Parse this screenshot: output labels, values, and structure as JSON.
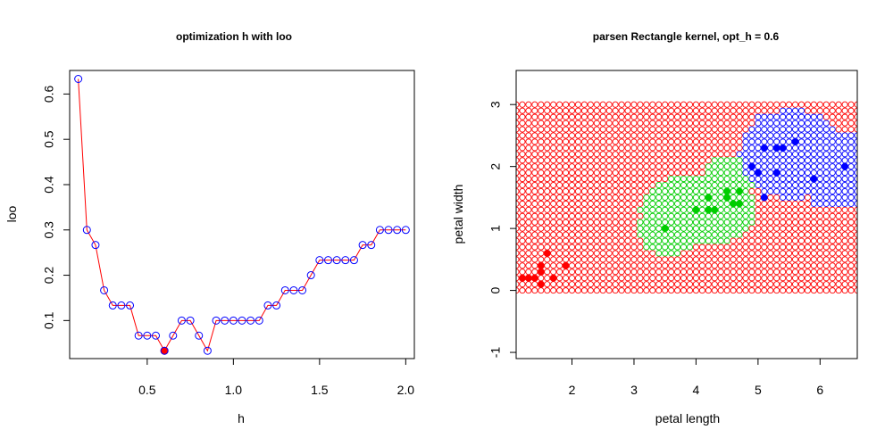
{
  "chart_data": [
    {
      "type": "line",
      "title": "optimization h with loo",
      "xlabel": "h",
      "ylabel": "loo",
      "xlim": [
        0.05,
        2.05
      ],
      "ylim": [
        0.016,
        0.652
      ],
      "xticks": [
        0.5,
        1.0,
        1.5,
        2.0
      ],
      "xtick_labels": [
        "0.5",
        "1.0",
        "1.5",
        "2.0"
      ],
      "yticks": [
        0.1,
        0.2,
        0.3,
        0.4,
        0.5,
        0.6
      ],
      "ytick_labels": [
        "0.1",
        "0.2",
        "0.3",
        "0.4",
        "0.5",
        "0.6"
      ],
      "grid": false,
      "line_color": "#ff0000",
      "point_color": "#0000ff",
      "optimum": {
        "x": 0.6,
        "y": 0.0333,
        "color": "#ff0000"
      },
      "x": [
        0.1,
        0.15,
        0.2,
        0.25,
        0.3,
        0.35,
        0.4,
        0.45,
        0.5,
        0.55,
        0.6,
        0.65,
        0.7,
        0.75,
        0.8,
        0.85,
        0.9,
        0.95,
        1.0,
        1.05,
        1.1,
        1.15,
        1.2,
        1.25,
        1.3,
        1.35,
        1.4,
        1.45,
        1.5,
        1.55,
        1.6,
        1.65,
        1.7,
        1.75,
        1.8,
        1.85,
        1.9,
        1.95,
        2.0
      ],
      "y": [
        0.6333,
        0.3,
        0.2667,
        0.1667,
        0.1333,
        0.1333,
        0.1333,
        0.0667,
        0.0667,
        0.0667,
        0.0333,
        0.0667,
        0.1,
        0.1,
        0.0667,
        0.0333,
        0.1,
        0.1,
        0.1,
        0.1,
        0.1,
        0.1,
        0.1333,
        0.1333,
        0.1667,
        0.1667,
        0.1667,
        0.2,
        0.2333,
        0.2333,
        0.2333,
        0.2333,
        0.2333,
        0.2667,
        0.2667,
        0.3,
        0.3,
        0.3,
        0.3
      ]
    },
    {
      "type": "scatter",
      "title": "parsen Rectangle kernel, opt_h =  0.6",
      "xlabel": "petal length",
      "ylabel": "petal width",
      "xlim": [
        1.1,
        6.6
      ],
      "ylim": [
        -1.1,
        3.55
      ],
      "xticks": [
        2,
        3,
        4,
        5,
        6
      ],
      "xtick_labels": [
        "2",
        "3",
        "4",
        "5",
        "6"
      ],
      "yticks": [
        -1,
        0,
        1,
        2,
        3
      ],
      "ytick_labels": [
        "-1",
        "0",
        "1",
        "2",
        "3"
      ],
      "grid": false,
      "classification_grid": {
        "x_range": [
          1.0,
          6.6
        ],
        "y_range": [
          0.0,
          3.0
        ],
        "step": 0.1,
        "classes": {
          "red": "#ff0000",
          "green": "#00cd00",
          "blue": "#0000ff"
        }
      },
      "series": [
        {
          "color": "#ff0000",
          "points": [
            [
              1.2,
              0.2
            ],
            [
              1.3,
              0.2
            ],
            [
              1.4,
              0.2
            ],
            [
              1.5,
              0.1
            ],
            [
              1.5,
              0.3
            ],
            [
              1.5,
              0.4
            ],
            [
              1.6,
              0.6
            ],
            [
              1.7,
              0.2
            ],
            [
              1.9,
              0.4
            ]
          ]
        },
        {
          "color": "#00cd00",
          "points": [
            [
              3.5,
              1.0
            ],
            [
              4.0,
              1.3
            ],
            [
              4.2,
              1.3
            ],
            [
              4.2,
              1.5
            ],
            [
              4.3,
              1.3
            ],
            [
              4.5,
              1.5
            ],
            [
              4.5,
              1.6
            ],
            [
              4.6,
              1.4
            ],
            [
              4.7,
              1.4
            ],
            [
              4.7,
              1.6
            ]
          ]
        },
        {
          "color": "#0000ff",
          "points": [
            [
              4.9,
              2.0
            ],
            [
              5.0,
              1.9
            ],
            [
              5.1,
              1.5
            ],
            [
              5.1,
              2.3
            ],
            [
              5.3,
              1.9
            ],
            [
              5.3,
              2.3
            ],
            [
              5.4,
              2.3
            ],
            [
              5.6,
              2.4
            ],
            [
              5.9,
              1.8
            ],
            [
              6.4,
              2.0
            ]
          ]
        }
      ]
    }
  ]
}
